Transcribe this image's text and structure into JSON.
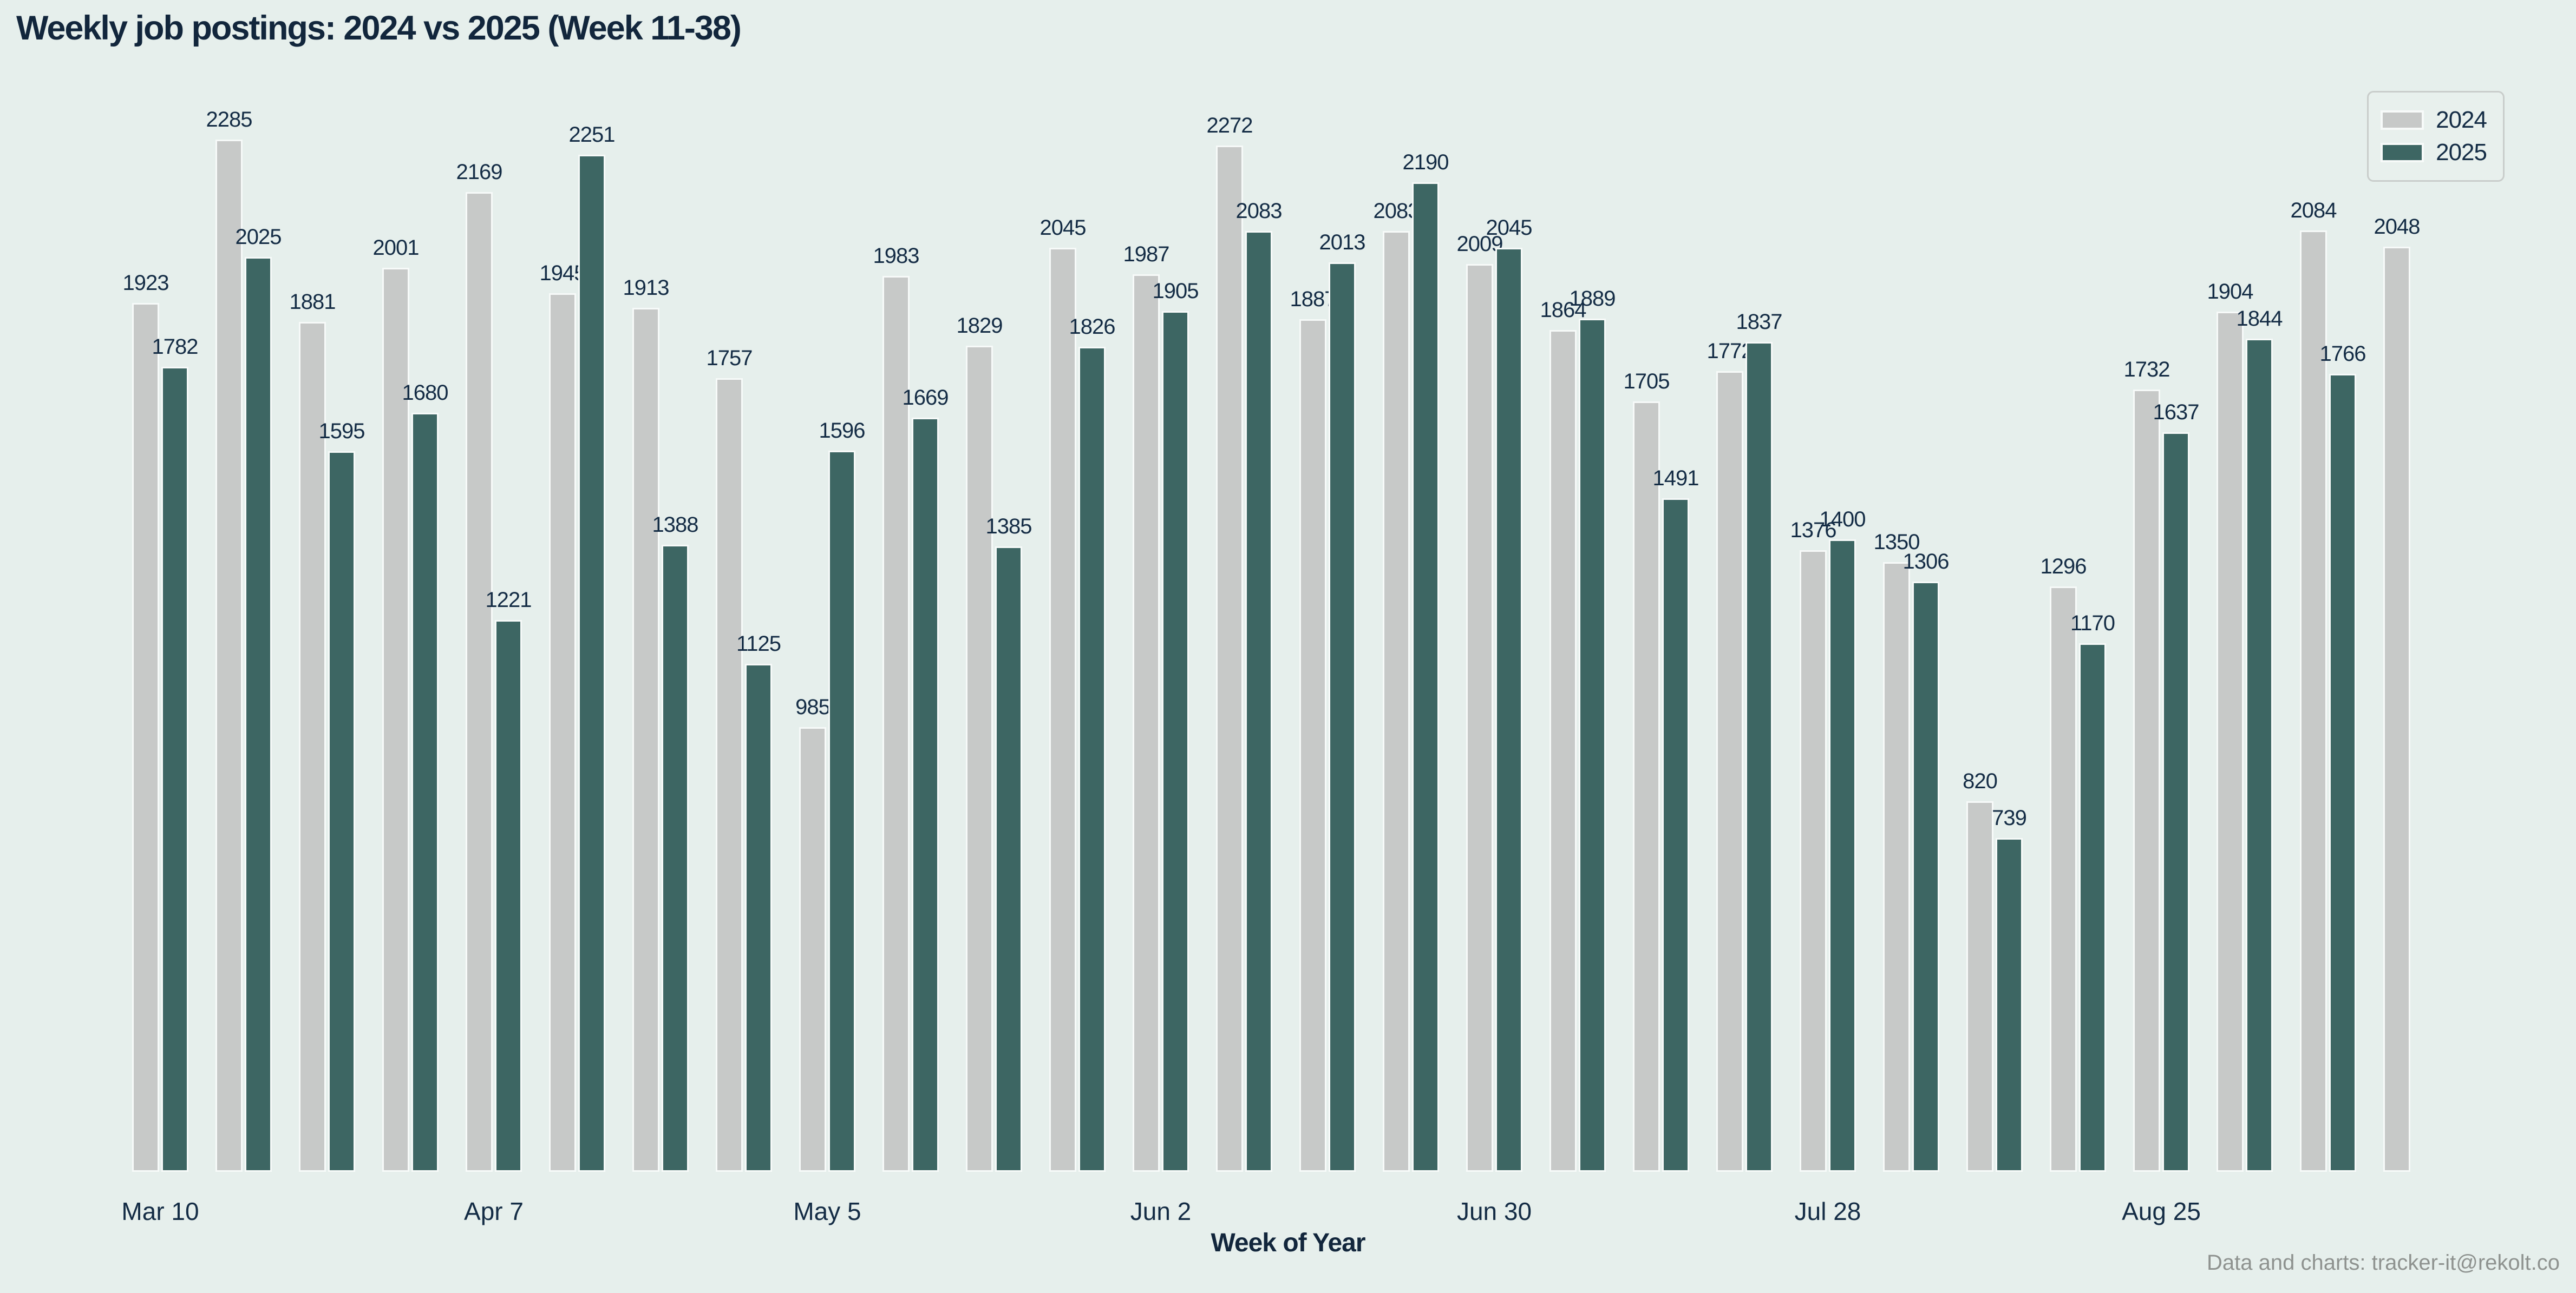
{
  "title": "Weekly job postings: 2024 vs 2025 (Week 11-38)",
  "x_axis_title": "Week of Year",
  "footer": "Data and charts: tracker-it@rekolt.co",
  "legend": {
    "position": "upper right",
    "entries": [
      "2024",
      "2025"
    ]
  },
  "colors": {
    "background": "#e6efec",
    "bar_2024": "#c7c9c8",
    "bar_2025": "#3d6663",
    "bar_outline": "#f7faf9",
    "text_navy": "#142c45",
    "footer_gray": "#8e928f",
    "legend_border": "#c9cdcb"
  },
  "chart_data": {
    "type": "bar",
    "title": "Weekly job postings: 2024 vs 2025 (Week 11-38)",
    "xlabel": "Week of Year",
    "ylabel": "",
    "grid": false,
    "legend_position": "upper right",
    "bar_value_labels_shown": true,
    "categories": [
      11,
      12,
      13,
      14,
      15,
      16,
      17,
      18,
      19,
      20,
      21,
      22,
      23,
      24,
      25,
      26,
      27,
      28,
      29,
      30,
      31,
      32,
      33,
      34,
      35,
      36,
      37,
      38
    ],
    "tick_group_indexes": [
      0,
      4,
      8,
      12,
      16,
      20,
      24
    ],
    "tick_labels": [
      "Mar 10",
      "Apr 7",
      "May 5",
      "Jun 2",
      "Jun 30",
      "Jul 28",
      "Aug 25"
    ],
    "ylim": [
      0,
      2420
    ],
    "series": [
      {
        "name": "2024",
        "color": "#c7c9c8",
        "values": [
          1923,
          2285,
          1881,
          2001,
          2169,
          1945,
          1913,
          1757,
          985,
          1983,
          1829,
          2045,
          1987,
          2272,
          1887,
          2083,
          2009,
          1864,
          1705,
          1772,
          1376,
          1350,
          820,
          1296,
          1732,
          1904,
          2084,
          2048
        ]
      },
      {
        "name": "2025",
        "color": "#3d6663",
        "values": [
          1782,
          2025,
          1595,
          1680,
          1221,
          2251,
          1388,
          1125,
          1596,
          1669,
          1385,
          1826,
          1905,
          2083,
          2013,
          2190,
          2045,
          1889,
          1491,
          1837,
          1400,
          1306,
          739,
          1170,
          1637,
          1844,
          1766,
          null
        ]
      }
    ]
  }
}
